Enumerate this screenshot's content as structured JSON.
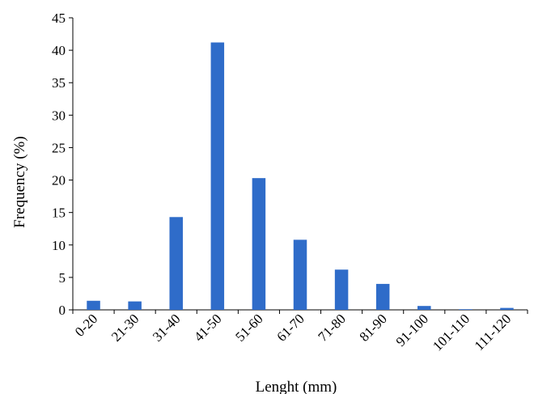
{
  "chart_data": {
    "type": "bar",
    "categories": [
      "0-20",
      "21-30",
      "31-40",
      "41-50",
      "51-60",
      "61-70",
      "71-80",
      "81-90",
      "91-100",
      "101-110",
      "111-120"
    ],
    "values": [
      1.4,
      1.3,
      14.3,
      41.2,
      20.3,
      10.8,
      6.2,
      4.0,
      0.6,
      0.1,
      0.3
    ],
    "title": "",
    "xlabel": "Lenght (mm)",
    "ylabel": "Frequency (%)",
    "ylim": [
      0,
      45
    ],
    "yticks": [
      0,
      5,
      10,
      15,
      20,
      25,
      30,
      35,
      40,
      45
    ],
    "grid": false,
    "legend": "none",
    "bar_color": "#2f6cc9"
  }
}
